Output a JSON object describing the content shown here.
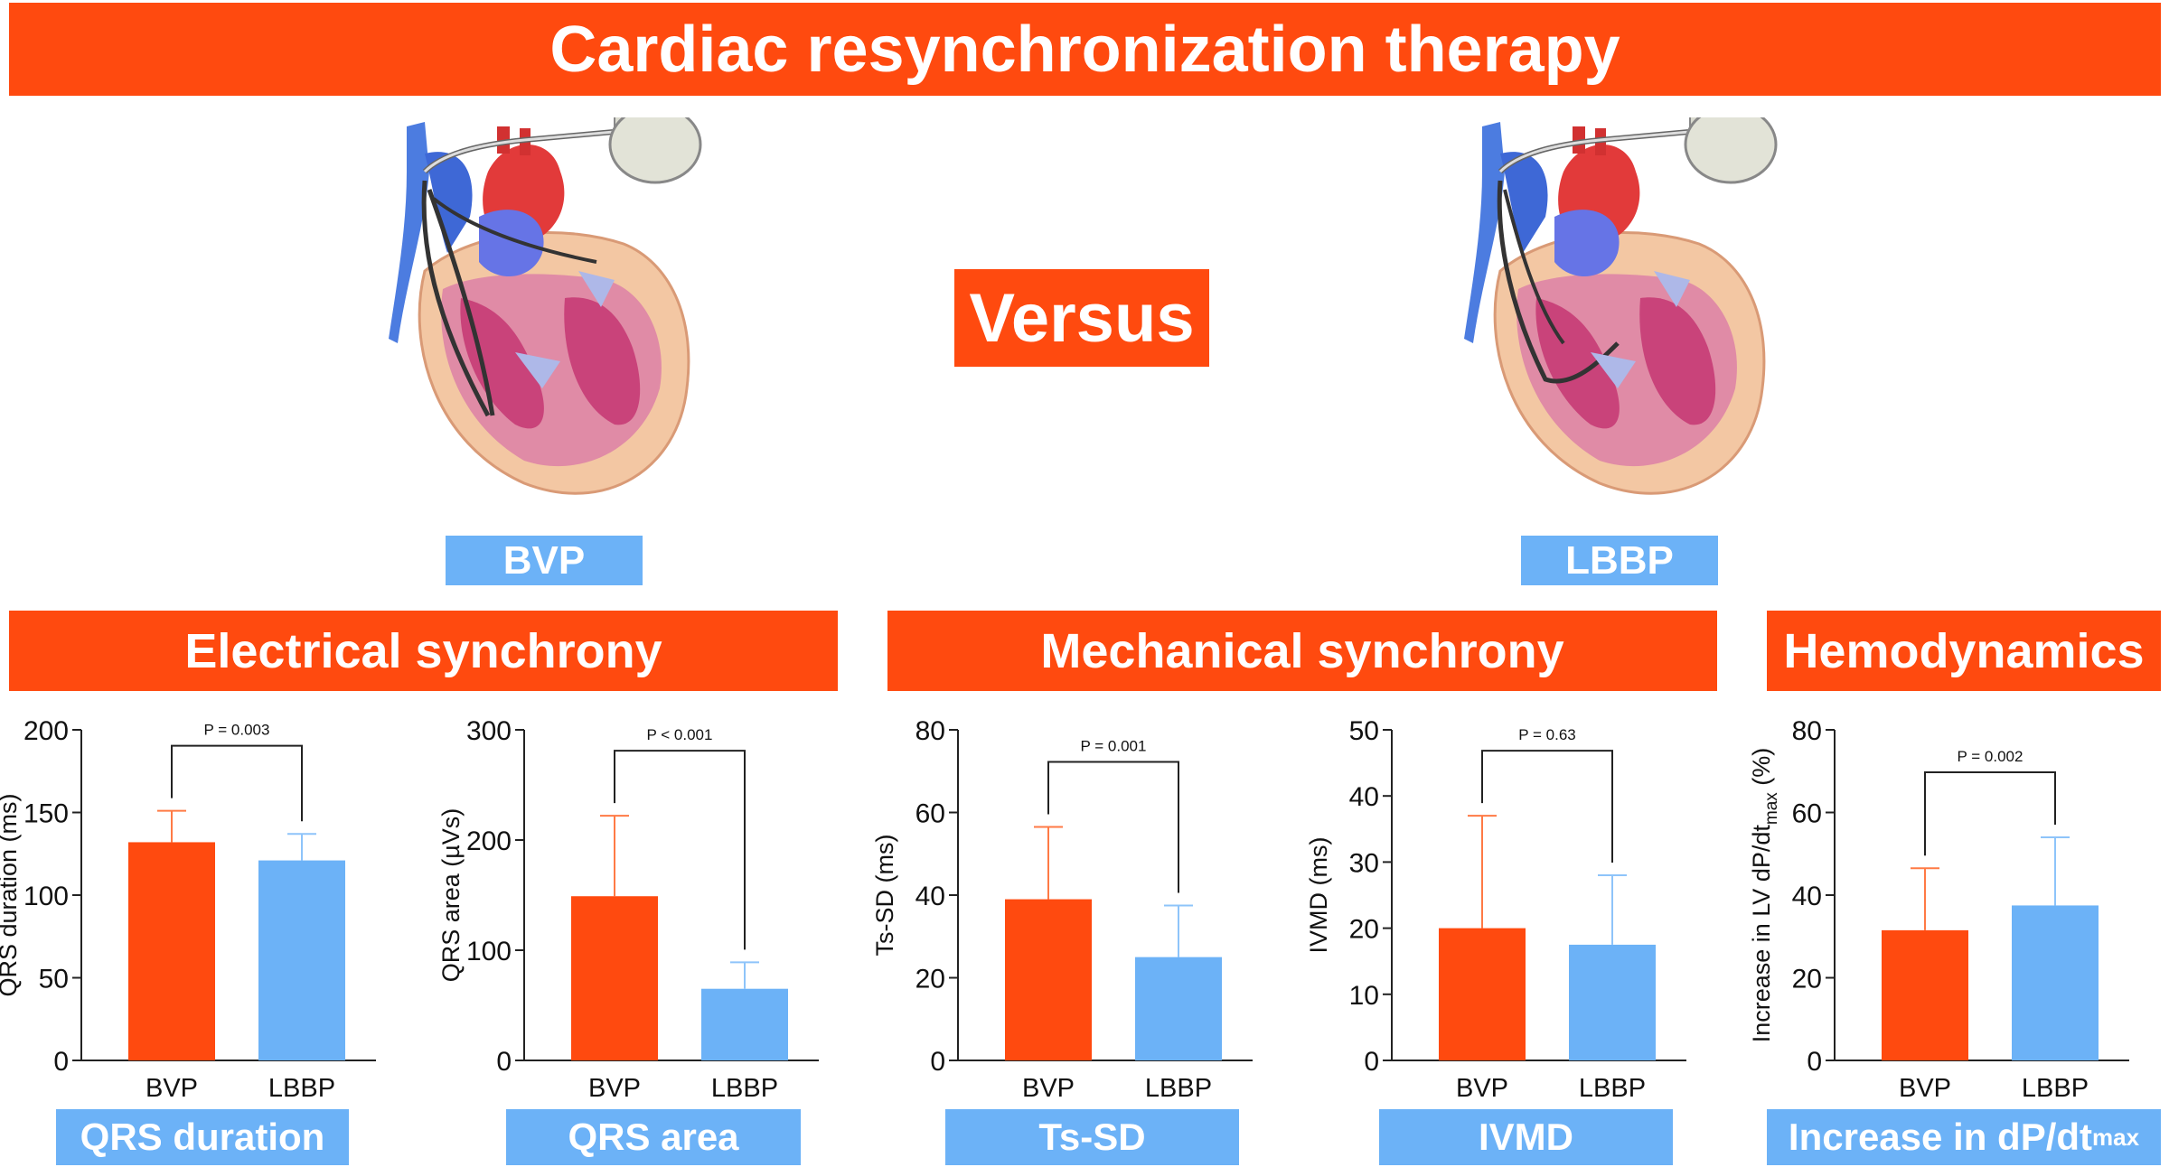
{
  "title": "Cardiac resynchronization therapy",
  "versus": "Versus",
  "device_labels": {
    "left": "BVP",
    "right": "LBBP"
  },
  "sections": {
    "electrical": "Electrical synchrony",
    "mechanical": "Mechanical synchrony",
    "hemodynamics": "Hemodynamics"
  },
  "metric_labels": {
    "qrs_duration": "QRS duration",
    "qrs_area": "QRS area",
    "ts_sd": "Ts-SD",
    "ivmd": "IVMD",
    "dpdt_main": "Increase in dP/dt",
    "dpdt_sub": "max"
  },
  "colors": {
    "bvp": "#FF4A0F",
    "lbbp": "#6CB2F7",
    "banner": "#FF4A0F",
    "label": "#6CB2F7"
  },
  "icons": {
    "left_heart": "heart-with-bvp-pacemaker-icon",
    "right_heart": "heart-with-lbbp-pacemaker-icon"
  },
  "chart_data": [
    {
      "type": "bar",
      "categories": [
        "BVP",
        "LBBP"
      ],
      "values": [
        132,
        121
      ],
      "errors": [
        19,
        16
      ],
      "ylabel": "QRS duration (ms)",
      "ylim": [
        0,
        200
      ],
      "yticks": [
        "0",
        "50",
        "100",
        "150",
        "200"
      ],
      "p_value": "P = 0.003"
    },
    {
      "type": "bar",
      "categories": [
        "BVP",
        "LBBP"
      ],
      "values": [
        149,
        65
      ],
      "errors": [
        73,
        24
      ],
      "ylabel": "QRS area (µVs)",
      "ylim": [
        0,
        300
      ],
      "yticks": [
        "0",
        "100",
        "200",
        "300"
      ],
      "p_value": "P < 0.001"
    },
    {
      "type": "bar",
      "categories": [
        "BVP",
        "LBBP"
      ],
      "values": [
        39,
        25
      ],
      "errors": [
        17.5,
        12.5
      ],
      "ylabel": "Ts-SD (ms)",
      "ylim": [
        0,
        80
      ],
      "yticks": [
        "0",
        "20",
        "40",
        "60",
        "80"
      ],
      "p_value": "P = 0.001"
    },
    {
      "type": "bar",
      "categories": [
        "BVP",
        "LBBP"
      ],
      "values": [
        20,
        17.5
      ],
      "errors": [
        17,
        10.5
      ],
      "ylabel": "IVMD (ms)",
      "ylim": [
        0,
        50
      ],
      "yticks": [
        "0",
        "10",
        "20",
        "30",
        "40",
        "50"
      ],
      "p_value": "P = 0.63"
    },
    {
      "type": "bar",
      "categories": [
        "BVP",
        "LBBP"
      ],
      "values": [
        31.5,
        37.5
      ],
      "errors": [
        15,
        16.5
      ],
      "ylabel_main": "Increase in LV dP/dt",
      "ylabel_sub": "max",
      "ylabel_tail": " (%)",
      "ylim": [
        0,
        80
      ],
      "yticks": [
        "0",
        "20",
        "40",
        "60",
        "80"
      ],
      "p_value": "P = 0.002"
    }
  ]
}
